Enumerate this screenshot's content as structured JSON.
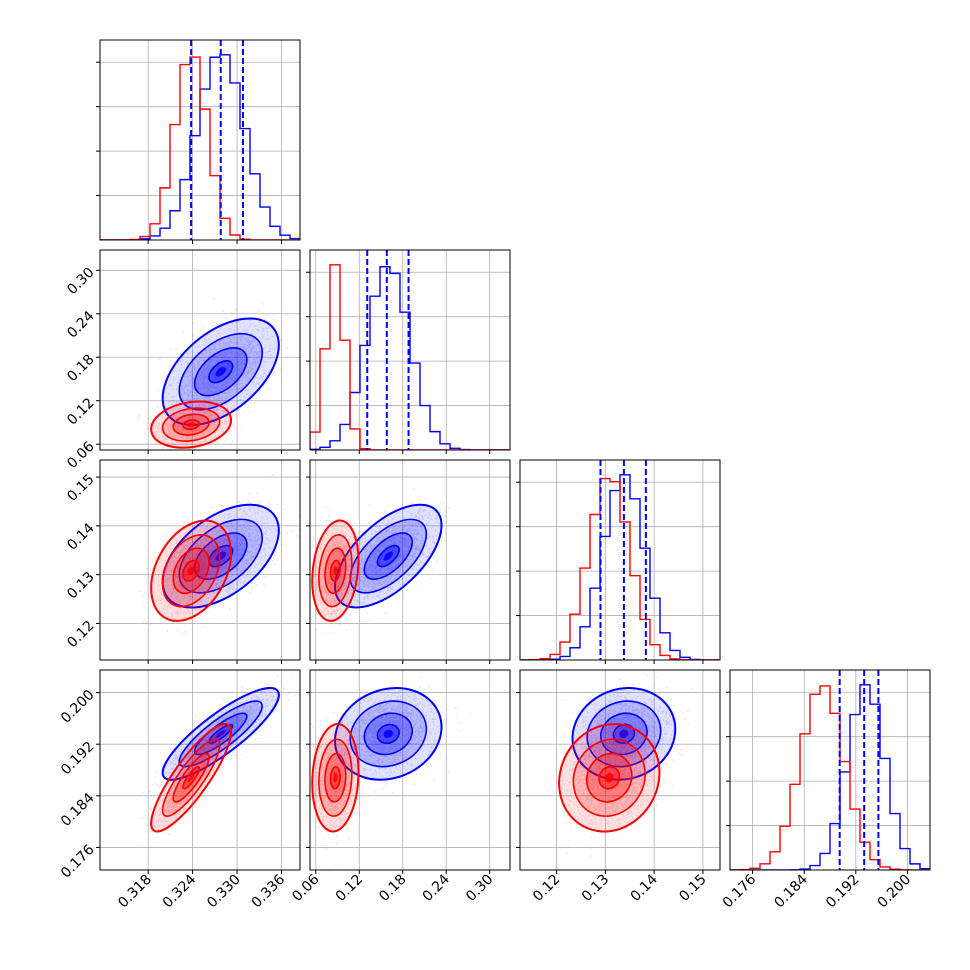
{
  "chart_data": {
    "type": "corner",
    "title": "",
    "parameters": [
      {
        "label": "",
        "range": [
          0.3115,
          0.3385
        ],
        "ticks": [
          0.318,
          0.324,
          0.33,
          0.336
        ],
        "tick_labels": [
          "0.318",
          "0.324",
          "0.330",
          "0.336"
        ]
      },
      {
        "label": "",
        "range": [
          0.052,
          0.328
        ],
        "ticks": [
          0.06,
          0.12,
          0.18,
          0.24,
          0.3
        ],
        "tick_labels": [
          "0.06",
          "0.12",
          "0.18",
          "0.24",
          "0.30"
        ]
      },
      {
        "label": "",
        "range": [
          0.1125,
          0.1535
        ],
        "ticks": [
          0.12,
          0.13,
          0.14,
          0.15
        ],
        "tick_labels": [
          "0.12",
          "0.13",
          "0.14",
          "0.15"
        ]
      },
      {
        "label": "",
        "range": [
          0.1725,
          0.2035
        ],
        "ticks": [
          0.176,
          0.184,
          0.192,
          0.2
        ],
        "tick_labels": [
          "0.176",
          "0.184",
          "0.192",
          "0.200"
        ]
      }
    ],
    "series": [
      {
        "color": "#0000ff",
        "mean": [
          0.3278,
          0.16,
          0.1338,
          0.1936
        ],
        "sigma": [
          0.0032,
          0.03,
          0.0043,
          0.0029
        ],
        "corr": {
          "0-1": 0.5,
          "0-2": 0.5,
          "0-3": 0.85,
          "1-2": 0.6,
          "1-3": 0.15,
          "2-3": 0.1
        },
        "quantiles": [
          [
            0.3238,
            0.3278,
            0.3308
          ],
          [
            0.131,
            0.158,
            0.188
          ],
          [
            0.129,
            0.1338,
            0.1383
          ],
          [
            0.1895,
            0.1933,
            0.1955
          ]
        ]
      },
      {
        "color": "#ff0000",
        "mean": [
          0.3238,
          0.087,
          0.1308,
          0.1868
        ],
        "sigma": [
          0.0022,
          0.013,
          0.0042,
          0.0034
        ],
        "corr": {
          "0-1": 0.2,
          "0-2": 0.35,
          "0-3": 0.85,
          "1-2": 0.2,
          "1-3": 0.1,
          "2-3": 0.1
        }
      }
    ],
    "grid": true,
    "legend": "none"
  }
}
